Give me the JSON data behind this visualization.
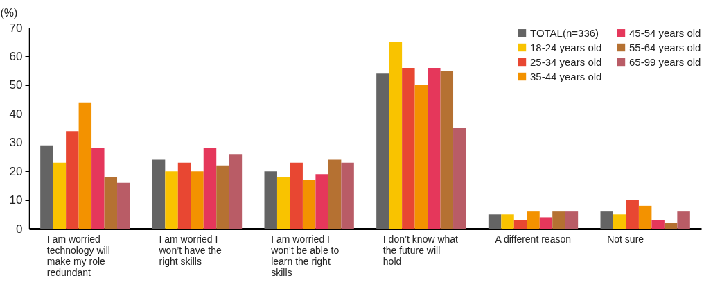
{
  "chart_data": {
    "type": "bar",
    "ylabel": "(%)",
    "categories": [
      "I am worried technology will make my role redundant",
      "I am worried I won’t have the right skills",
      "I am worried I won’t be able to learn the right skills",
      "I don’t know what the future will hold",
      "A different reason",
      "Not sure"
    ],
    "series": [
      {
        "name": "TOTAL(n=336)",
        "color": "#646464",
        "values": [
          29,
          24,
          20,
          54,
          5,
          6
        ]
      },
      {
        "name": "18-24 years old",
        "color": "#f9c300",
        "values": [
          23,
          20,
          18,
          65,
          5,
          5
        ]
      },
      {
        "name": "25-34 years old",
        "color": "#e84732",
        "values": [
          34,
          23,
          23,
          56,
          3,
          10
        ]
      },
      {
        "name": "35-44 years old",
        "color": "#f39200",
        "values": [
          44,
          20,
          17,
          50,
          6,
          8
        ]
      },
      {
        "name": "45-54 years old",
        "color": "#e5375b",
        "values": [
          28,
          28,
          19,
          56,
          4,
          3
        ]
      },
      {
        "name": "55-64 years old",
        "color": "#b57132",
        "values": [
          18,
          22,
          24,
          55,
          6,
          2
        ]
      },
      {
        "name": "65-99 years old",
        "color": "#b95c66",
        "values": [
          16,
          26,
          23,
          35,
          6,
          6
        ]
      }
    ],
    "ylim": [
      0,
      70
    ],
    "yticks": [
      0,
      10,
      20,
      30,
      40,
      50,
      60,
      70
    ],
    "grid": false,
    "legend": "top right"
  }
}
